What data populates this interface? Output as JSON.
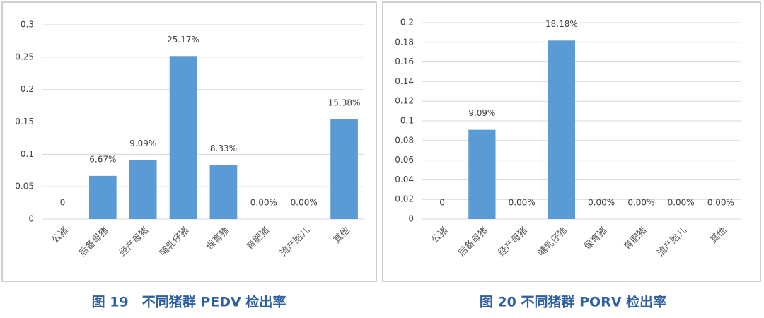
{
  "chart_data": [
    {
      "type": "bar",
      "caption": "图 19　不同猪群 PEDV 检出率",
      "categories": [
        "公猪",
        "后备母猪",
        "经产母猪",
        "哺乳仔猪",
        "保育猪",
        "育肥猪",
        "流产胎儿",
        "其他"
      ],
      "values": [
        0,
        0.0667,
        0.0909,
        0.2517,
        0.0833,
        0,
        0,
        0.1538
      ],
      "value_labels": [
        "0",
        "6.67%",
        "9.09%",
        "25.17%",
        "8.33%",
        "0.00%",
        "0.00%",
        "15.38%"
      ],
      "color": "#5b9bd5",
      "ylim": [
        0,
        0.3
      ],
      "yticks": [
        0,
        0.05,
        0.1,
        0.15,
        0.2,
        0.25,
        0.3
      ],
      "grid": true
    },
    {
      "type": "bar",
      "caption": "图 20 不同猪群 PORV 检出率",
      "categories": [
        "公猪",
        "后备母猪",
        "经产母猪",
        "哺乳仔猪",
        "保育猪",
        "育肥猪",
        "流产胎儿",
        "其他"
      ],
      "values": [
        0,
        0.0909,
        0,
        0.1818,
        0,
        0,
        0,
        0
      ],
      "value_labels": [
        "0",
        "9.09%",
        "0.00%",
        "18.18%",
        "0.00%",
        "0.00%",
        "0.00%",
        "0.00%"
      ],
      "color": "#5b9bd5",
      "ylim": [
        0,
        0.2
      ],
      "yticks": [
        0,
        0.02,
        0.04,
        0.06,
        0.08,
        0.1,
        0.12,
        0.14,
        0.16,
        0.18,
        0.2
      ],
      "grid": true
    }
  ]
}
